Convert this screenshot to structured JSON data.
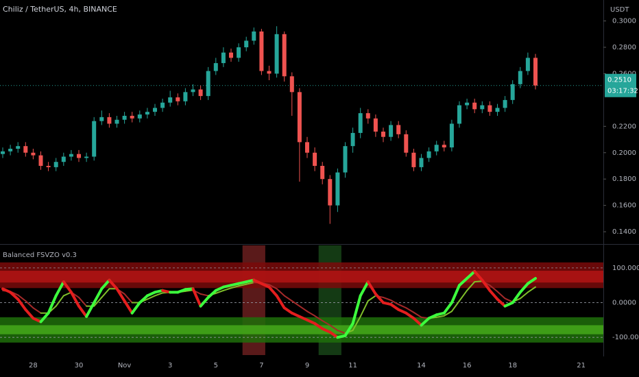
{
  "chart_data": [
    {
      "type": "candlestick",
      "title": "Chiliz / TetherUS, 4h, BINANCE",
      "currency": "USDT",
      "categories": [
        null,
        null,
        null,
        null,
        "28",
        null,
        null,
        null,
        null,
        null,
        "30",
        null,
        null,
        null,
        null,
        null,
        "Nov",
        null,
        null,
        null,
        null,
        null,
        "3",
        null,
        null,
        null,
        null,
        null,
        "5",
        null,
        null,
        null,
        null,
        null,
        "7",
        null,
        null,
        null,
        null,
        null,
        "9",
        null,
        null,
        null,
        null,
        null,
        "11",
        null,
        null,
        null,
        null,
        null,
        null,
        null,
        null,
        "14",
        null,
        null,
        null,
        null,
        null,
        "16",
        null,
        null,
        null,
        null,
        null,
        "18",
        null,
        null,
        null,
        null,
        null,
        null,
        null,
        null,
        "21"
      ],
      "open": [
        0.199,
        0.201,
        0.203,
        0.205,
        0.2,
        0.198,
        0.19,
        0.189,
        0.193,
        0.197,
        0.199,
        0.196,
        0.197,
        0.224,
        0.227,
        0.222,
        0.225,
        0.228,
        0.226,
        0.229,
        0.231,
        0.234,
        0.238,
        0.242,
        0.239,
        0.246,
        0.248,
        0.243,
        0.262,
        0.268,
        0.276,
        0.272,
        0.28,
        0.285,
        0.292,
        0.262,
        0.26,
        0.29,
        0.258,
        0.246,
        0.208,
        0.2,
        0.19,
        0.18,
        0.16,
        0.185,
        0.205,
        0.215,
        0.23,
        0.226,
        0.216,
        0.212,
        0.221,
        0.214,
        0.2,
        0.189,
        0.196,
        0.201,
        0.206,
        0.204,
        0.222,
        0.236,
        0.238,
        0.233,
        0.236,
        0.231,
        0.234,
        0.24,
        0.252,
        0.262,
        0.272,
        null,
        null,
        null,
        null,
        null,
        null
      ],
      "high": [
        0.204,
        0.206,
        0.208,
        0.208,
        0.203,
        0.201,
        0.193,
        0.196,
        0.2,
        0.202,
        0.202,
        0.2,
        0.227,
        0.232,
        0.23,
        0.228,
        0.231,
        0.231,
        0.232,
        0.234,
        0.237,
        0.241,
        0.247,
        0.245,
        0.249,
        0.252,
        0.251,
        0.265,
        0.272,
        0.28,
        0.279,
        0.283,
        0.288,
        0.295,
        0.294,
        0.266,
        0.296,
        0.292,
        0.261,
        0.249,
        0.212,
        0.204,
        0.193,
        0.183,
        0.188,
        0.208,
        0.219,
        0.234,
        0.233,
        0.229,
        0.219,
        0.224,
        0.224,
        0.217,
        0.203,
        0.199,
        0.204,
        0.209,
        0.209,
        0.225,
        0.239,
        0.241,
        0.241,
        0.239,
        0.239,
        0.237,
        0.243,
        0.255,
        0.265,
        0.276,
        0.275,
        null,
        null,
        null,
        null,
        null,
        null
      ],
      "low": [
        0.196,
        0.198,
        0.2,
        0.197,
        0.195,
        0.187,
        0.186,
        0.186,
        0.19,
        0.194,
        0.193,
        0.193,
        0.194,
        0.221,
        0.219,
        0.219,
        0.222,
        0.223,
        0.223,
        0.226,
        0.228,
        0.231,
        0.235,
        0.236,
        0.236,
        0.243,
        0.24,
        0.24,
        0.259,
        0.265,
        0.269,
        0.269,
        0.277,
        0.282,
        0.259,
        0.255,
        0.257,
        0.254,
        0.228,
        0.178,
        0.196,
        0.186,
        0.176,
        0.146,
        0.155,
        0.181,
        0.2,
        0.211,
        0.222,
        0.212,
        0.208,
        0.209,
        0.211,
        0.197,
        0.186,
        0.186,
        0.193,
        0.198,
        0.201,
        0.201,
        0.219,
        0.233,
        0.23,
        0.23,
        0.228,
        0.228,
        0.231,
        0.237,
        0.249,
        0.259,
        0.248,
        null,
        null,
        null,
        null,
        null,
        null
      ],
      "close": [
        0.201,
        0.203,
        0.205,
        0.2,
        0.198,
        0.19,
        0.189,
        0.193,
        0.197,
        0.199,
        0.196,
        0.197,
        0.224,
        0.227,
        0.222,
        0.225,
        0.228,
        0.226,
        0.229,
        0.231,
        0.234,
        0.238,
        0.242,
        0.239,
        0.246,
        0.248,
        0.243,
        0.262,
        0.268,
        0.276,
        0.272,
        0.28,
        0.285,
        0.292,
        0.262,
        0.26,
        0.29,
        0.258,
        0.246,
        0.208,
        0.2,
        0.19,
        0.18,
        0.16,
        0.185,
        0.205,
        0.215,
        0.23,
        0.226,
        0.216,
        0.212,
        0.221,
        0.214,
        0.2,
        0.189,
        0.196,
        0.201,
        0.206,
        0.204,
        0.222,
        0.236,
        0.238,
        0.233,
        0.236,
        0.231,
        0.234,
        0.24,
        0.252,
        0.262,
        0.272,
        0.251,
        null,
        null,
        null,
        null,
        null,
        null
      ],
      "up_color": "#26a69a",
      "down_color": "#ef5350",
      "ylim": [
        0.1312,
        0.3159
      ],
      "yticks": [
        {
          "value": 0.14,
          "label": "0.1400"
        },
        {
          "value": 0.16,
          "label": "0.1600"
        },
        {
          "value": 0.18,
          "label": "0.1800"
        },
        {
          "value": 0.2,
          "label": "0.2000"
        },
        {
          "value": 0.22,
          "label": "0.2200"
        },
        {
          "value": 0.26,
          "label": "0.2600"
        },
        {
          "value": 0.28,
          "label": "0.2800"
        },
        {
          "value": 0.3,
          "label": "0.3000"
        }
      ],
      "last_price": {
        "value": 0.251,
        "label": "0.2510"
      },
      "countdown": "03:17:32",
      "grid": false
    },
    {
      "type": "line",
      "title": "Balanced FSVZO v0.3",
      "series": [
        {
          "up_color": "#3dff3d",
          "down_color": "#e41e1e",
          "values": [
            40,
            30,
            10,
            -20,
            -45,
            -55,
            -30,
            20,
            60,
            30,
            -10,
            -40,
            0,
            40,
            65,
            40,
            5,
            -30,
            0,
            20,
            30,
            35,
            30,
            30,
            38,
            40,
            -10,
            15,
            35,
            45,
            50,
            55,
            60,
            65,
            55,
            45,
            20,
            -15,
            -30,
            -40,
            -50,
            -60,
            -75,
            -85,
            -100,
            -95,
            -60,
            20,
            60,
            25,
            0,
            -5,
            -20,
            -30,
            -45,
            -65,
            -45,
            -35,
            -30,
            0,
            50,
            70,
            90,
            65,
            35,
            10,
            -10,
            0,
            30,
            55,
            70
          ]
        },
        {
          "up_color": "#7fbf2a",
          "down_color": "#a52a2a",
          "values": [
            35,
            32,
            22,
            5,
            -15,
            -30,
            -30,
            -10,
            20,
            30,
            15,
            -10,
            -10,
            15,
            40,
            40,
            25,
            0,
            0,
            10,
            20,
            28,
            30,
            30,
            33,
            36,
            25,
            20,
            27,
            35,
            42,
            48,
            53,
            58,
            57,
            52,
            40,
            20,
            5,
            -10,
            -25,
            -38,
            -52,
            -65,
            -80,
            -88,
            -80,
            -40,
            5,
            20,
            15,
            7,
            -5,
            -15,
            -28,
            -42,
            -45,
            -42,
            -38,
            -25,
            5,
            35,
            60,
            62,
            50,
            32,
            12,
            2,
            12,
            30,
            45
          ]
        }
      ],
      "bands": [
        {
          "from": 42,
          "to": 116,
          "color": "#7a0a0a"
        },
        {
          "from": 58,
          "to": 92,
          "color": "#b31414"
        },
        {
          "from": -42,
          "to": -115,
          "color": "#1f6e0a"
        },
        {
          "from": -65,
          "to": -91,
          "color": "#45a81a"
        }
      ],
      "highlights": [
        {
          "start": 32,
          "end": 34,
          "color": "#5a1a1a"
        },
        {
          "start": 42,
          "end": 44,
          "color": "#143a14"
        }
      ],
      "ylim": [
        -151,
        165
      ],
      "yticks": [
        {
          "value": 100,
          "label": "100.0000"
        },
        {
          "value": 0,
          "label": "0.0000"
        },
        {
          "value": -100,
          "label": "-100.0000"
        }
      ],
      "grid": true
    }
  ]
}
